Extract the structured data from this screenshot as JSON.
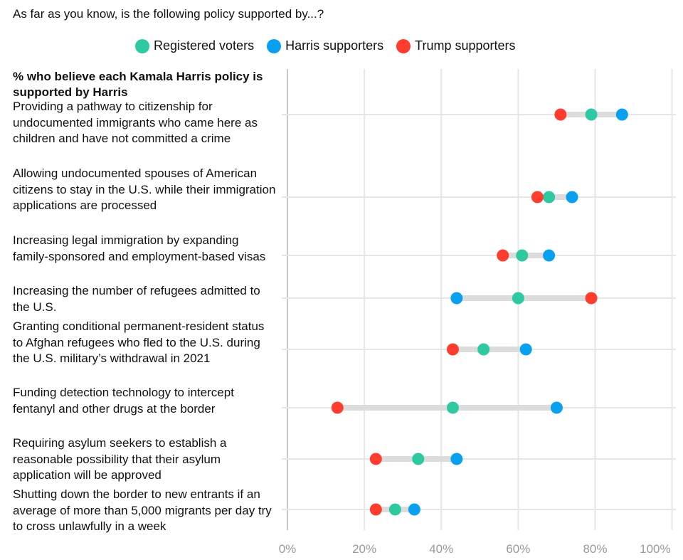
{
  "question": "As far as you know, is the following policy supported by...?",
  "chart_data": {
    "type": "dot-range",
    "subtitle": "% who believe each Kamala Harris policy is supported by Harris",
    "xlim": [
      0,
      100
    ],
    "x_ticks": [
      "0%",
      "20%",
      "40%",
      "60%",
      "80%",
      "100%"
    ],
    "grid": true,
    "legend_position": "top",
    "series": [
      {
        "name": "Registered voters",
        "color": "#2ec9a0"
      },
      {
        "name": "Harris supporters",
        "color": "#0aa0f0"
      },
      {
        "name": "Trump supporters",
        "color": "#ff3d2e"
      }
    ],
    "categories": [
      "Providing a pathway to citizenship for undocumented immigrants who came here as children and have not committed a crime",
      "Allowing undocumented spouses of American citizens to stay in the U.S. while their immigration applications are processed",
      "Increasing legal immigration by expanding family-sponsored and employment-based visas",
      "Increasing the number of refugees admitted to the U.S.",
      "Granting conditional permanent-resident status to Afghan refugees who fled to the U.S. during the U.S. military’s withdrawal in 2021",
      "Funding detection technology to intercept fentanyl and other drugs at the border",
      "Requiring asylum seekers to establish a reasonable possibility that their asylum application will be approved",
      "Shutting down the border to new entrants if an average of more than 5,000 migrants per day try to cross unlawfully in a week"
    ],
    "values": {
      "Registered voters": [
        79,
        68,
        61,
        60,
        51,
        43,
        34,
        28
      ],
      "Harris supporters": [
        87,
        74,
        68,
        44,
        62,
        70,
        44,
        33
      ],
      "Trump supporters": [
        71,
        65,
        56,
        79,
        43,
        13,
        23,
        23
      ]
    }
  }
}
